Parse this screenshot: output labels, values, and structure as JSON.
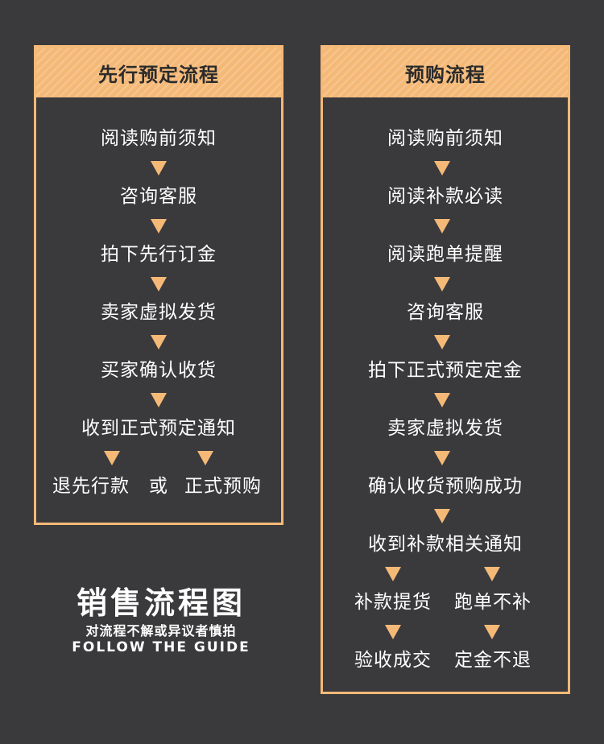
{
  "left_panel": {
    "title": "先行预定流程",
    "steps": [
      "阅读购前须知",
      "咨询客服",
      "拍下先行订金",
      "卖家虚拟发货",
      "买家确认收货",
      "收到正式预定通知"
    ],
    "final": {
      "option_a": "退先行款",
      "connector": "或",
      "option_b": "正式预购"
    }
  },
  "right_panel": {
    "title": "预购流程",
    "steps": [
      "阅读购前须知",
      "阅读补款必读",
      "阅读跑单提醒",
      "咨询客服",
      "拍下正式预定定金",
      "卖家虚拟发货",
      "确认收货预购成功",
      "收到补款相关通知"
    ],
    "branch_left": [
      "补款提货",
      "验收成交"
    ],
    "branch_right": [
      "跑单不补",
      "定金不退"
    ]
  },
  "footer": {
    "title": "销售流程图",
    "subtitle": "对流程不解或异议者慎拍",
    "english": "FOLLOW THE GUIDE"
  },
  "colors": {
    "accent": "#f5b977",
    "background": "#3a3a3c",
    "text": "#ffffff"
  }
}
